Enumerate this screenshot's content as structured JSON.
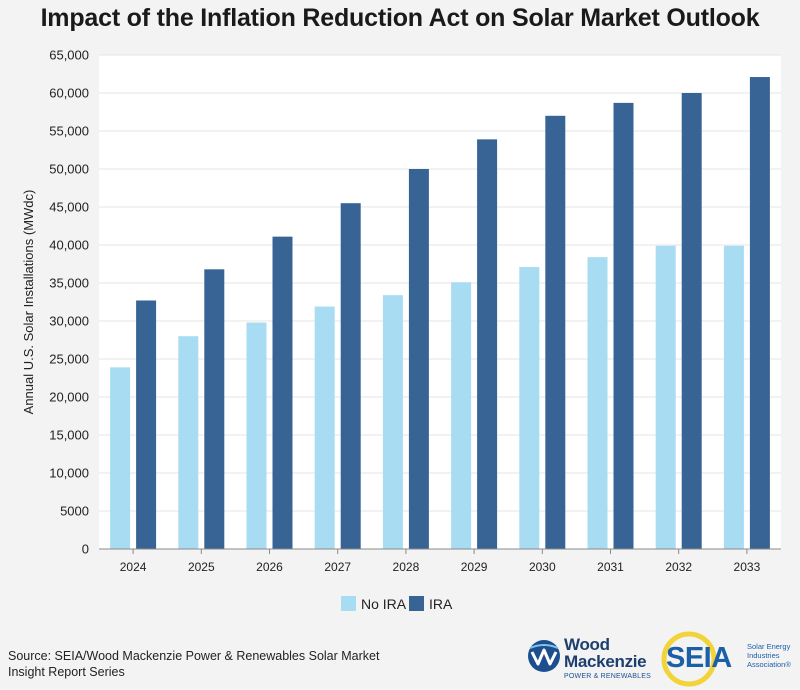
{
  "chart_data": {
    "type": "bar",
    "title": "Impact of the Inflation Reduction Act on Solar Market Outlook",
    "xlabel": "",
    "ylabel": "Annual U.S. Solar Installations (MWdc)",
    "categories": [
      "2024",
      "2025",
      "2026",
      "2027",
      "2028",
      "2029",
      "2030",
      "2031",
      "2032",
      "2033"
    ],
    "series": [
      {
        "name": "No IRA",
        "color": "#a8dcf2",
        "values": [
          23900,
          28000,
          29800,
          31900,
          33400,
          35100,
          37100,
          38400,
          39900,
          39900
        ]
      },
      {
        "name": "IRA",
        "color": "#386495",
        "values": [
          32700,
          36800,
          41100,
          45500,
          50000,
          53900,
          57000,
          58700,
          60000,
          62100
        ]
      }
    ],
    "ylim": [
      0,
      65000
    ],
    "yticks": [
      0,
      5000,
      10000,
      15000,
      20000,
      25000,
      30000,
      35000,
      40000,
      45000,
      50000,
      55000,
      60000,
      65000
    ],
    "ytick_labels": [
      "0",
      "5000",
      "10,000",
      "15,000",
      "20,000",
      "25,000",
      "30,000",
      "35,000",
      "40,000",
      "45,000",
      "50,000",
      "55,000",
      "60,000",
      "65,000"
    ],
    "grid": true,
    "legend_position": "bottom-center"
  },
  "source": "Source: SEIA/Wood Mackenzie Power & Renewables Solar Market Insight Report Series",
  "logos": {
    "wood_mackenzie": {
      "name_line1": "Wood",
      "name_line2": "Mackenzie",
      "subtitle": "POWER & RENEWABLES"
    },
    "seia": {
      "name": "SEIA",
      "subtitle": "Solar Energy Industries Association®"
    }
  }
}
